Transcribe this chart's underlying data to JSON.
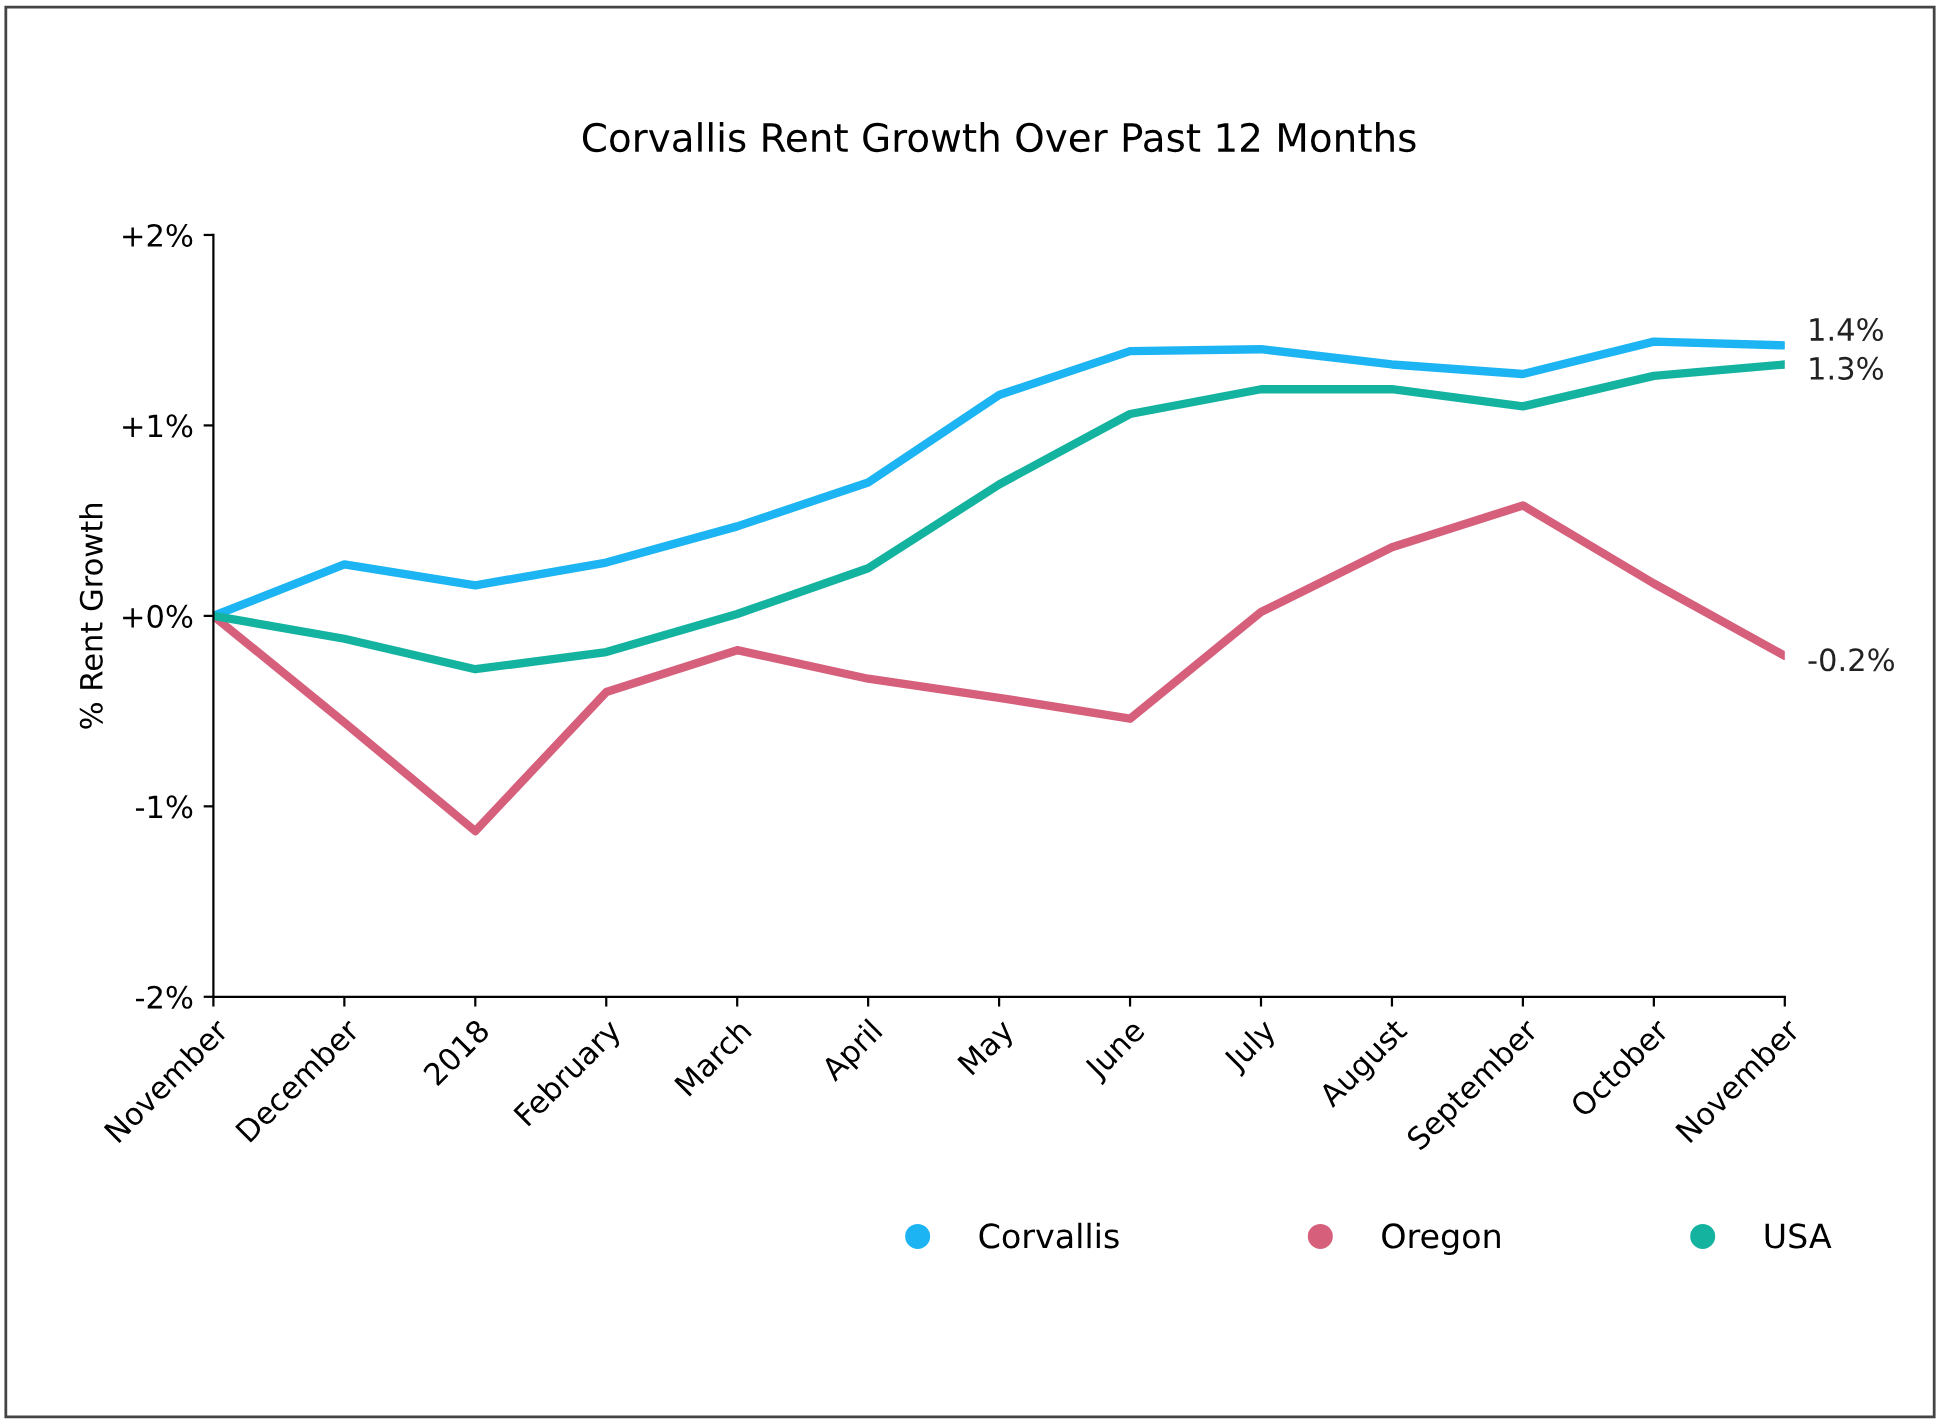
{
  "chart_data": {
    "type": "line",
    "title": "Corvallis Rent Growth Over Past 12 Months",
    "ylabel": "% Rent Growth",
    "categories": [
      "November",
      "December",
      "2018",
      "February",
      "March",
      "April",
      "May",
      "June",
      "July",
      "August",
      "September",
      "October",
      "November"
    ],
    "series": [
      {
        "name": "Corvallis",
        "color": "#1cb4f2",
        "values": [
          0,
          0.27,
          0.16,
          0.28,
          0.47,
          0.7,
          1.16,
          1.39,
          1.4,
          1.32,
          1.27,
          1.44,
          1.42
        ],
        "value_labels": [
          null,
          null,
          null,
          null,
          null,
          null,
          null,
          null,
          null,
          null,
          null,
          null,
          "1.4%"
        ]
      },
      {
        "name": "Oregon",
        "color": "#d6607c",
        "values": [
          0,
          -0.56,
          -1.13,
          -0.4,
          -0.18,
          -0.33,
          -0.43,
          -0.54,
          0.02,
          0.36,
          0.58,
          0.17,
          -0.21
        ],
        "value_labels": [
          null,
          null,
          null,
          null,
          null,
          null,
          null,
          null,
          null,
          null,
          null,
          null,
          "-0.2%"
        ]
      },
      {
        "name": "USA",
        "color": "#14b3a0",
        "values": [
          0,
          -0.12,
          -0.28,
          -0.19,
          0.01,
          0.25,
          0.69,
          1.06,
          1.19,
          1.19,
          1.1,
          1.26,
          1.32
        ],
        "value_labels": [
          null,
          null,
          null,
          null,
          null,
          null,
          null,
          null,
          null,
          null,
          null,
          null,
          "1.3%"
        ]
      }
    ],
    "ylim": [
      -2,
      2
    ],
    "yticks": [
      {
        "value": -2,
        "label": "-2%"
      },
      {
        "value": -1,
        "label": "-1%"
      },
      {
        "value": 0,
        "label": "+0%"
      },
      {
        "value": 1,
        "label": "+1%"
      },
      {
        "value": 2,
        "label": "+2%"
      }
    ],
    "grid": false,
    "legend": "bottom",
    "marker": "none",
    "line_style": "solid"
  }
}
